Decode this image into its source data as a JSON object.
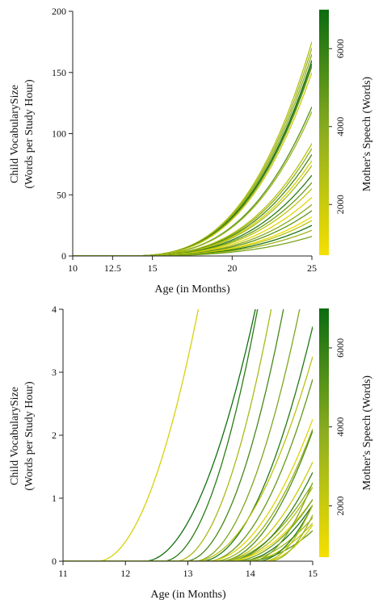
{
  "chart_data": [
    {
      "type": "line",
      "xlabel": "Age (in Months)",
      "ylabel_line1": "Child VocabularySize",
      "ylabel_line2": "(Words per Study Hour)",
      "xlim": [
        10,
        25
      ],
      "ylim": [
        0,
        200
      ],
      "xticks": [
        10,
        12.5,
        15,
        20,
        25
      ],
      "xtick_labels": [
        "10",
        "12.5",
        "15",
        "20",
        "25"
      ],
      "yticks": [
        0,
        50,
        100,
        150,
        200
      ],
      "ytick_labels": [
        "0",
        "50",
        "100",
        "150",
        "200"
      ],
      "colorbar": {
        "label": "Mother's Speech (Words)",
        "range": [
          700,
          7000
        ],
        "ticks": [
          2000,
          4000,
          6000
        ],
        "tick_labels": [
          "2000",
          "4000",
          "6000"
        ],
        "low_color": "#f5e000",
        "high_color": "#0a6b10"
      },
      "curve_model": "y = a * max(0, x - 13)^3",
      "series": [
        {
          "end_y": 175,
          "speech": 2700
        },
        {
          "end_y": 170,
          "speech": 3300
        },
        {
          "end_y": 165,
          "speech": 3900
        },
        {
          "end_y": 160,
          "speech": 6800
        },
        {
          "end_y": 157,
          "speech": 6100
        },
        {
          "end_y": 155,
          "speech": 4500
        },
        {
          "end_y": 150,
          "speech": 2000
        },
        {
          "end_y": 122,
          "speech": 5200
        },
        {
          "end_y": 118,
          "speech": 3300
        },
        {
          "end_y": 92,
          "speech": 2600
        },
        {
          "end_y": 88,
          "speech": 3600
        },
        {
          "end_y": 83,
          "speech": 5600
        },
        {
          "end_y": 78,
          "speech": 1700
        },
        {
          "end_y": 74,
          "speech": 3000
        },
        {
          "end_y": 66,
          "speech": 6300
        },
        {
          "end_y": 60,
          "speech": 4600
        },
        {
          "end_y": 55,
          "speech": 2300
        },
        {
          "end_y": 48,
          "speech": 1300
        },
        {
          "end_y": 42,
          "speech": 3900
        },
        {
          "end_y": 37,
          "speech": 5000
        },
        {
          "end_y": 32,
          "speech": 1000
        },
        {
          "end_y": 29,
          "speech": 2500
        },
        {
          "end_y": 25,
          "speech": 6600
        },
        {
          "end_y": 21,
          "speech": 3400
        },
        {
          "end_y": 16,
          "speech": 4300
        }
      ]
    },
    {
      "type": "line",
      "xlabel": "Age (in Months)",
      "ylabel_line1": "Child VocabularySize",
      "ylabel_line2": "(Words per Study Hour)",
      "xlim": [
        11,
        15
      ],
      "ylim": [
        0,
        4
      ],
      "xticks": [
        11,
        12,
        13,
        14,
        15
      ],
      "xtick_labels": [
        "11",
        "12",
        "13",
        "14",
        "15"
      ],
      "yticks": [
        0,
        1,
        2,
        3,
        4
      ],
      "ytick_labels": [
        "0",
        "1",
        "2",
        "3",
        "4"
      ],
      "colorbar": {
        "label": "Mother's Speech (Words)",
        "range": [
          700,
          7000
        ],
        "ticks": [
          2000,
          4000,
          6000
        ],
        "tick_labels": [
          "2000",
          "4000",
          "6000"
        ],
        "low_color": "#f5e000",
        "high_color": "#0a6b10"
      },
      "curve_model": "y = a * max(0, x - onset)^2",
      "series": [
        {
          "onset": 11.55,
          "a": 1.53,
          "speech": 1600
        },
        {
          "onset": 12.3,
          "a": 1.26,
          "speech": 6800
        },
        {
          "onset": 12.6,
          "a": 1.74,
          "speech": 6200
        },
        {
          "onset": 12.8,
          "a": 1.7,
          "speech": 3000
        },
        {
          "onset": 12.95,
          "a": 1.6,
          "speech": 5600
        },
        {
          "onset": 13.1,
          "a": 1.4,
          "speech": 4200
        },
        {
          "onset": 13.2,
          "a": 1.15,
          "speech": 6400
        },
        {
          "onset": 13.1,
          "a": 0.9,
          "speech": 2500
        },
        {
          "onset": 13.3,
          "a": 1.0,
          "speech": 4800
        },
        {
          "onset": 13.3,
          "a": 0.78,
          "speech": 1400
        },
        {
          "onset": 13.4,
          "a": 0.82,
          "speech": 3600
        },
        {
          "onset": 13.5,
          "a": 0.92,
          "speech": 5300
        },
        {
          "onset": 13.5,
          "a": 0.7,
          "speech": 2000
        },
        {
          "onset": 13.5,
          "a": 0.55,
          "speech": 3900
        },
        {
          "onset": 13.6,
          "a": 0.72,
          "speech": 5900
        },
        {
          "onset": 13.6,
          "a": 0.6,
          "speech": 2800
        },
        {
          "onset": 13.6,
          "a": 0.5,
          "speech": 1200
        },
        {
          "onset": 13.7,
          "a": 0.58,
          "speech": 4500
        },
        {
          "onset": 13.8,
          "a": 0.62,
          "speech": 6600
        },
        {
          "onset": 13.8,
          "a": 0.48,
          "speech": 3300
        },
        {
          "onset": 13.9,
          "a": 0.5,
          "speech": 2300
        },
        {
          "onset": 13.9,
          "a": 0.4,
          "speech": 5000
        },
        {
          "onset": 14.0,
          "a": 1.25,
          "speech": 4100
        },
        {
          "onset": 14.1,
          "a": 1.1,
          "speech": 6200
        },
        {
          "onset": 14.2,
          "a": 1.4,
          "speech": 2700
        },
        {
          "onset": 14.2,
          "a": 0.9,
          "speech": 1800
        },
        {
          "onset": 14.3,
          "a": 1.5,
          "speech": 3500
        }
      ]
    }
  ]
}
